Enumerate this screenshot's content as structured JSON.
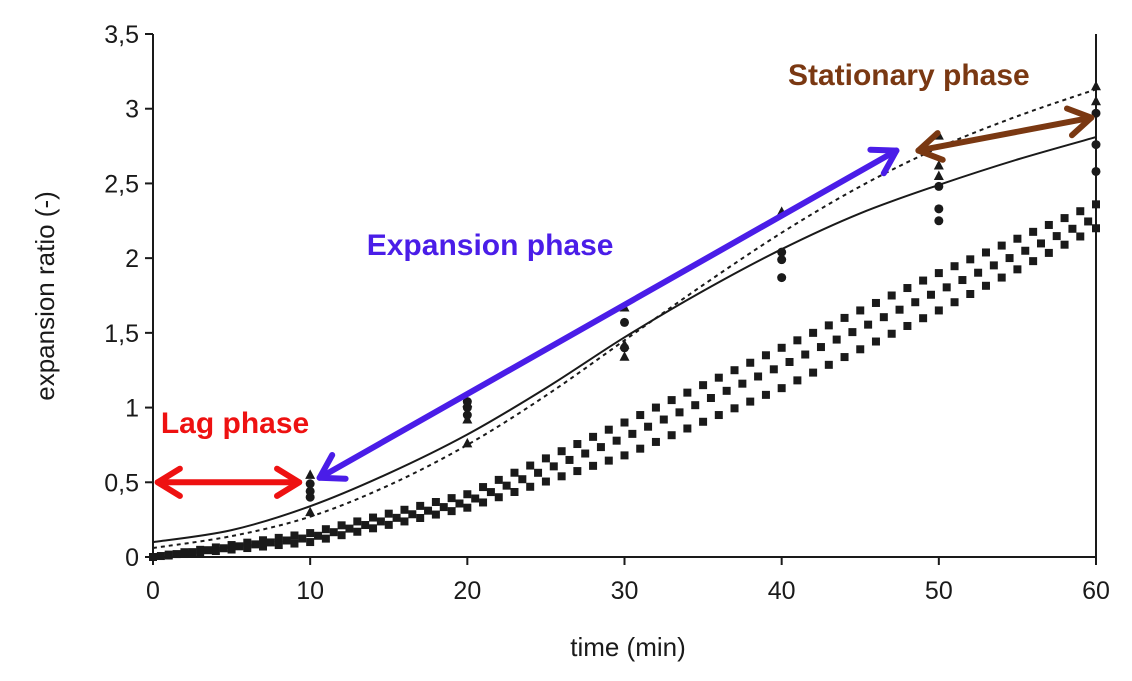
{
  "chart_data": {
    "type": "scatter",
    "title": "",
    "xlabel": "time (min)",
    "ylabel": "expansion ratio (-)",
    "xlim": [
      0,
      60
    ],
    "ylim": [
      0,
      3.5
    ],
    "x_ticks": [
      {
        "value": 0,
        "label": "0"
      },
      {
        "value": 10,
        "label": "10"
      },
      {
        "value": 20,
        "label": "20"
      },
      {
        "value": 30,
        "label": "30"
      },
      {
        "value": 40,
        "label": "40"
      },
      {
        "value": 50,
        "label": "50"
      },
      {
        "value": 60,
        "label": "60"
      }
    ],
    "y_ticks": [
      {
        "value": 0,
        "label": "0"
      },
      {
        "value": 0.5,
        "label": "0,5"
      },
      {
        "value": 1,
        "label": "1"
      },
      {
        "value": 1.5,
        "label": "1,5"
      },
      {
        "value": 2,
        "label": "2"
      },
      {
        "value": 2.5,
        "label": "2,5"
      },
      {
        "value": 3,
        "label": "3"
      },
      {
        "value": 3.5,
        "label": "3,5"
      }
    ],
    "grid": false,
    "series": [
      {
        "name": "circles",
        "marker": "circle",
        "points": [
          [
            10,
            0.4
          ],
          [
            10,
            0.44
          ],
          [
            10,
            0.49
          ],
          [
            20,
            0.95
          ],
          [
            20,
            1.0
          ],
          [
            20,
            1.04
          ],
          [
            30,
            1.4
          ],
          [
            30,
            1.57
          ],
          [
            40,
            1.87
          ],
          [
            40,
            1.99
          ],
          [
            40,
            2.04
          ],
          [
            50,
            2.25
          ],
          [
            50,
            2.33
          ],
          [
            50,
            2.48
          ],
          [
            60,
            2.58
          ],
          [
            60,
            2.76
          ],
          [
            60,
            2.97
          ]
        ]
      },
      {
        "name": "triangles",
        "marker": "triangle",
        "points": [
          [
            10,
            0.3
          ],
          [
            10,
            0.55
          ],
          [
            20,
            0.76
          ],
          [
            20,
            0.92
          ],
          [
            20,
            1.03
          ],
          [
            30,
            1.34
          ],
          [
            30,
            1.42
          ],
          [
            30,
            1.67
          ],
          [
            40,
            2.31
          ],
          [
            50,
            2.55
          ],
          [
            50,
            2.62
          ],
          [
            50,
            2.82
          ],
          [
            60,
            3.05
          ],
          [
            60,
            3.15
          ]
        ]
      },
      {
        "name": "solid fit",
        "style": "solid-line",
        "points": [
          [
            0,
            0.1
          ],
          [
            5,
            0.18
          ],
          [
            10,
            0.34
          ],
          [
            15,
            0.56
          ],
          [
            20,
            0.82
          ],
          [
            25,
            1.13
          ],
          [
            30,
            1.47
          ],
          [
            35,
            1.78
          ],
          [
            40,
            2.06
          ],
          [
            45,
            2.3
          ],
          [
            50,
            2.49
          ],
          [
            55,
            2.66
          ],
          [
            60,
            2.81
          ]
        ]
      },
      {
        "name": "dotted fit",
        "style": "dotted-line",
        "points": [
          [
            0,
            0.06
          ],
          [
            5,
            0.14
          ],
          [
            10,
            0.27
          ],
          [
            15,
            0.48
          ],
          [
            20,
            0.75
          ],
          [
            25,
            1.08
          ],
          [
            30,
            1.45
          ],
          [
            35,
            1.82
          ],
          [
            40,
            2.17
          ],
          [
            45,
            2.48
          ],
          [
            50,
            2.74
          ],
          [
            55,
            2.95
          ],
          [
            60,
            3.13
          ]
        ]
      },
      {
        "name": "square band upper",
        "marker": "square",
        "points": [
          [
            0,
            0.0
          ],
          [
            10,
            0.16
          ],
          [
            20,
            0.42
          ],
          [
            30,
            0.9
          ],
          [
            40,
            1.4
          ],
          [
            50,
            1.9
          ],
          [
            60,
            2.36
          ]
        ]
      },
      {
        "name": "square band middle",
        "marker": "square",
        "points": [
          [
            0,
            0.0
          ],
          [
            10,
            0.13
          ],
          [
            20,
            0.37
          ],
          [
            30,
            0.8
          ],
          [
            40,
            1.28
          ],
          [
            50,
            1.78
          ],
          [
            60,
            2.27
          ]
        ]
      },
      {
        "name": "square band lower",
        "marker": "square",
        "points": [
          [
            0,
            0.0
          ],
          [
            10,
            0.1
          ],
          [
            20,
            0.33
          ],
          [
            30,
            0.68
          ],
          [
            40,
            1.13
          ],
          [
            50,
            1.65
          ],
          [
            60,
            2.2
          ]
        ]
      }
    ],
    "annotations": [
      {
        "id": "lag",
        "text": "Lag phase",
        "color": "#ee1111",
        "text_at": [
          0.5,
          0.83
        ],
        "arrow": {
          "from": [
            0.3,
            0.5
          ],
          "to": [
            9.3,
            0.5
          ],
          "double": true
        }
      },
      {
        "id": "expansion",
        "text": "Expansion phase",
        "color": "#4a1de8",
        "text_at": [
          13.6,
          2.02
        ],
        "arrow": {
          "from": [
            10.6,
            0.53
          ],
          "to": [
            47.3,
            2.72
          ],
          "double": true
        }
      },
      {
        "id": "stationary",
        "text": "Stationary phase",
        "color": "#7a3812",
        "text_at": [
          40.4,
          3.16
        ],
        "arrow": {
          "from": [
            48.7,
            2.72
          ],
          "to": [
            59.7,
            2.94
          ],
          "double": true
        }
      }
    ]
  }
}
